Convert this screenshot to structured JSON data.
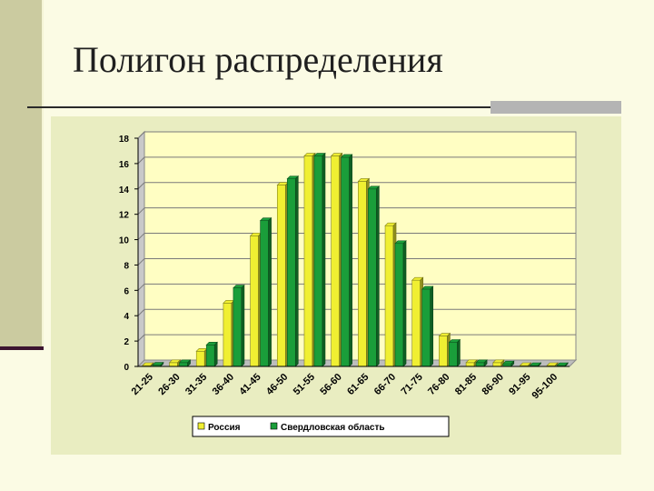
{
  "slide": {
    "title": "Полигон распределения"
  },
  "colors": {
    "background": "#fbfbe4",
    "chart_area": "#e9edc1",
    "plot_area": "#fffec3",
    "series_1": "#f0ef32",
    "series_2": "#1a9e3a"
  },
  "chart_data": {
    "type": "bar",
    "categories": [
      "21-25",
      "26-30",
      "31-35",
      "36-40",
      "41-45",
      "46-50",
      "51-55",
      "56-60",
      "61-65",
      "66-70",
      "71-75",
      "76-80",
      "81-85",
      "86-90",
      "91-95",
      "95-100"
    ],
    "series": [
      {
        "name": "Россия",
        "values": [
          0.05,
          0.3,
          1.2,
          5.0,
          10.3,
          14.3,
          16.6,
          16.6,
          14.6,
          11.1,
          6.8,
          2.4,
          0.3,
          0.3,
          0.05,
          0.05
        ]
      },
      {
        "name": "Свердловская область",
        "values": [
          0.1,
          0.3,
          1.7,
          6.2,
          11.5,
          14.8,
          16.6,
          16.5,
          14.0,
          9.7,
          6.1,
          1.9,
          0.3,
          0.2,
          0.05,
          0.05
        ]
      }
    ],
    "yticks": [
      0,
      2,
      4,
      6,
      8,
      10,
      12,
      14,
      16,
      18
    ],
    "ylim": [
      0,
      18
    ],
    "grid": true,
    "legend": "bottom"
  }
}
